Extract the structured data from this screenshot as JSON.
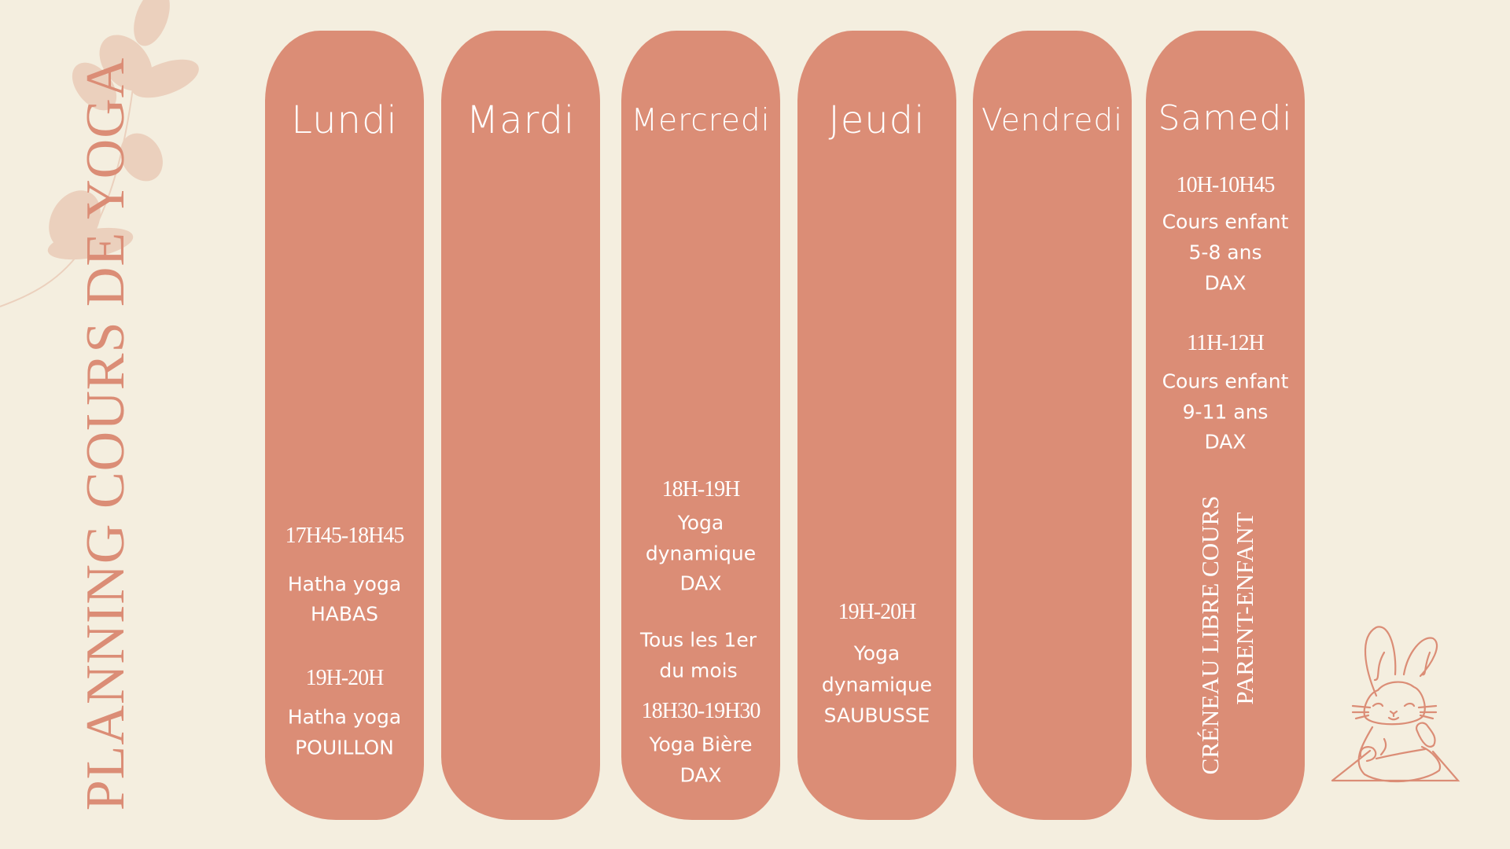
{
  "title": "PLANNING COURS DE YOGA",
  "colors": {
    "background": "#F4EEDF",
    "column": "#DB8D76",
    "leaf": "#EBD0BD",
    "text_on_column": "#FFFFFF"
  },
  "days": [
    {
      "name": "Lundi",
      "slots": [
        {
          "time": "17H45-18H45",
          "lines": [
            "Hatha yoga",
            "HABAS"
          ]
        },
        {
          "time": "19H-20H",
          "lines": [
            "Hatha yoga",
            "POUILLON"
          ]
        }
      ]
    },
    {
      "name": "Mardi",
      "slots": []
    },
    {
      "name": "Mercredi",
      "slots": [
        {
          "time": "18H-19H",
          "lines": [
            "Yoga",
            "dynamique",
            "DAX"
          ]
        },
        {
          "note": [
            "Tous les 1er",
            "du mois"
          ],
          "time": "18H30-19H30",
          "lines": [
            "Yoga Bière",
            "DAX"
          ]
        }
      ]
    },
    {
      "name": "Jeudi",
      "slots": [
        {
          "time": "19H-20H",
          "lines": [
            "Yoga",
            "dynamique",
            "SAUBUSSE"
          ]
        }
      ]
    },
    {
      "name": "Vendredi",
      "slots": []
    },
    {
      "name": "Samedi",
      "slots": [
        {
          "time": "10H-10H45",
          "lines": [
            "Cours enfant",
            "5-8 ans",
            "DAX"
          ]
        },
        {
          "time": "11H-12H",
          "lines": [
            "Cours enfant",
            "9-11 ans",
            "DAX"
          ]
        }
      ],
      "vertical_note": [
        "CRÉNEAU LIBRE COURS",
        "PARENT-ENFANT"
      ]
    }
  ],
  "decor": {
    "leaf_branch": "leaf-branch-icon",
    "bunny": "meditating-bunny-icon"
  }
}
